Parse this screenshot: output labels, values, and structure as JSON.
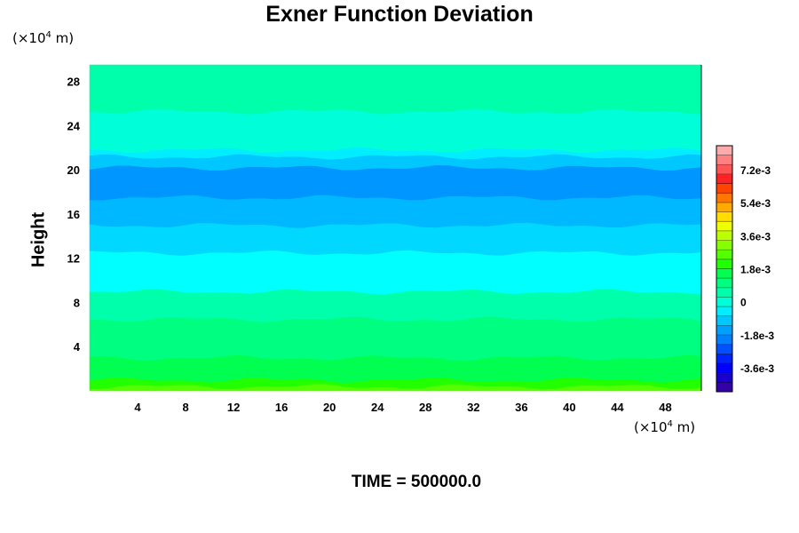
{
  "title": "Exner Function Deviation",
  "y_unit": {
    "prefix": "(×10",
    "exp": "4",
    "suffix": " m)"
  },
  "x_unit": {
    "prefix": "(×10",
    "exp": "4",
    "suffix": " m)"
  },
  "ylabel": "Height",
  "time_label": "TIME = 500000.0",
  "chart_data": {
    "type": "heatmap",
    "title": "Exner Function Deviation",
    "ylabel": "Height",
    "x_ticks": [
      4,
      8,
      12,
      16,
      20,
      24,
      28,
      32,
      36,
      40,
      44,
      48
    ],
    "y_ticks": [
      4,
      8,
      12,
      16,
      20,
      24,
      28
    ],
    "xlim": [
      0,
      51
    ],
    "ylim": [
      0,
      29.5
    ],
    "colorbar": {
      "range": [
        -0.0049,
        0.0085
      ],
      "tick_labels": [
        "7.2e-3",
        "5.4e-3",
        "3.6e-3",
        "1.8e-3",
        "0",
        "-1.8e-3",
        "-3.6e-3"
      ],
      "tick_values": [
        0.0072,
        0.0054,
        0.0036,
        0.0018,
        0,
        -0.0018,
        -0.0036
      ],
      "colors": [
        "#3300aa",
        "#1a00cc",
        "#0000ff",
        "#0022ff",
        "#0050ff",
        "#0080ff",
        "#00a0ff",
        "#00c8ff",
        "#00eeff",
        "#00ffd8",
        "#00ffaa",
        "#00ff80",
        "#00ff50",
        "#22ff00",
        "#55ff00",
        "#88ff00",
        "#bbff00",
        "#eeff00",
        "#ffdd00",
        "#ffaa00",
        "#ff7700",
        "#ff4400",
        "#ff2222",
        "#ff5555",
        "#ff8080",
        "#ffaaaa"
      ]
    },
    "bands": [
      {
        "y0": 0.0,
        "y1": 0.4,
        "color": "#55ff00"
      },
      {
        "y0": 0.4,
        "y1": 1.0,
        "color": "#22ff00"
      },
      {
        "y0": 1.0,
        "y1": 3.0,
        "color": "#00ff50"
      },
      {
        "y0": 3.0,
        "y1": 6.5,
        "color": "#00ff80"
      },
      {
        "y0": 6.5,
        "y1": 9.0,
        "color": "#00ffaa"
      },
      {
        "y0": 9.0,
        "y1": 12.5,
        "color": "#00ffff"
      },
      {
        "y0": 12.5,
        "y1": 15.0,
        "color": "#00d8ff"
      },
      {
        "y0": 15.0,
        "y1": 17.5,
        "color": "#00b8ff"
      },
      {
        "y0": 17.5,
        "y1": 20.2,
        "color": "#0096ff"
      },
      {
        "y0": 20.2,
        "y1": 21.2,
        "color": "#00c8ff"
      },
      {
        "y0": 21.2,
        "y1": 21.8,
        "color": "#00eeff"
      },
      {
        "y0": 21.8,
        "y1": 25.3,
        "color": "#00ffd8"
      },
      {
        "y0": 25.3,
        "y1": 29.5,
        "color": "#00ffaa"
      }
    ]
  }
}
